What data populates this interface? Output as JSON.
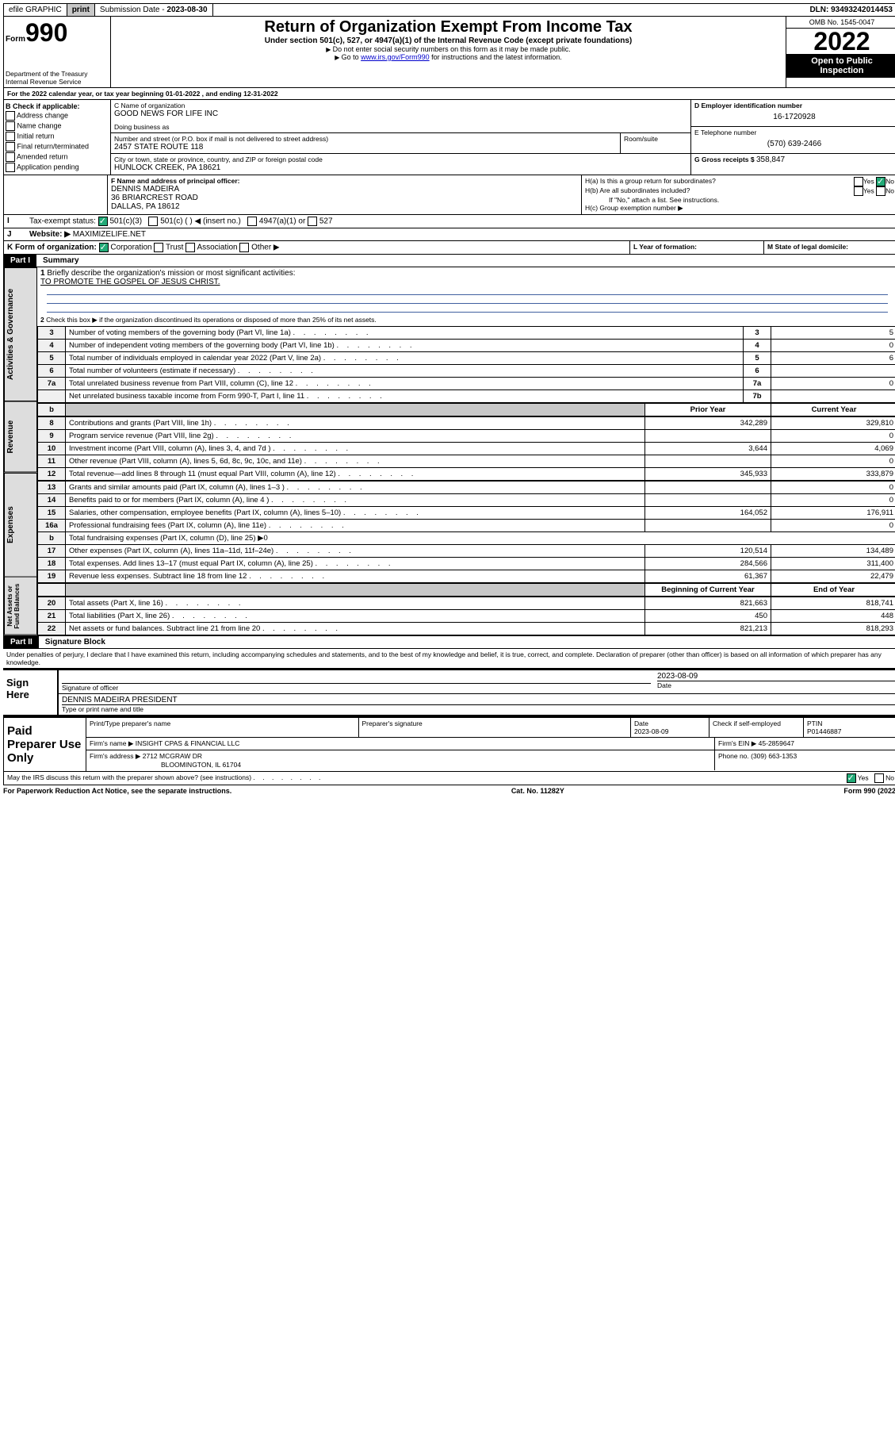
{
  "topbar": {
    "efile": "efile GRAPHIC",
    "print": "print",
    "sub_label": "Submission Date - ",
    "sub_date": "2023-08-30",
    "dln_label": "DLN: ",
    "dln": "93493242014453"
  },
  "header": {
    "form_prefix": "Form",
    "form_num": "990",
    "dept": "Department of the Treasury",
    "irs": "Internal Revenue Service",
    "title": "Return of Organization Exempt From Income Tax",
    "sub1": "Under section 501(c), 527, or 4947(a)(1) of the Internal Revenue Code (except private foundations)",
    "sub2": "Do not enter social security numbers on this form as it may be made public.",
    "sub3_pre": "Go to ",
    "sub3_link": "www.irs.gov/Form990",
    "sub3_post": " for instructions and the latest information.",
    "omb": "OMB No. 1545-0047",
    "year": "2022",
    "open": "Open to Public Inspection"
  },
  "line_a": "For the 2022 calendar year, or tax year beginning 01-01-2022    , and ending 12-31-2022",
  "block_b": {
    "label": "B Check if applicable:",
    "opts": [
      "Address change",
      "Name change",
      "Initial return",
      "Final return/terminated",
      "Amended return",
      "Application pending"
    ]
  },
  "block_c": {
    "name_label": "C Name of organization",
    "name": "GOOD NEWS FOR LIFE INC",
    "dba_label": "Doing business as",
    "addr_label": "Number and street (or P.O. box if mail is not delivered to street address)",
    "room_label": "Room/suite",
    "addr": "2457 STATE ROUTE 118",
    "city_label": "City or town, state or province, country, and ZIP or foreign postal code",
    "city": "HUNLOCK CREEK, PA   18621"
  },
  "block_d": {
    "label": "D Employer identification number",
    "val": "16-1720928"
  },
  "block_e": {
    "label": "E Telephone number",
    "val": "(570) 639-2466"
  },
  "block_g": {
    "label": "G Gross receipts $ ",
    "val": "358,847"
  },
  "block_f": {
    "label": "F  Name and address of principal officer:",
    "name": "DENNIS MADEIRA",
    "addr1": "36 BRIARCREST ROAD",
    "addr2": "DALLAS, PA   18612"
  },
  "block_h": {
    "a": "H(a)  Is this a group return for subordinates?",
    "b": "H(b)  Are all subordinates included?",
    "b_note": "If \"No,\" attach a list. See instructions.",
    "c": "H(c)  Group exemption number ▶",
    "yes": "Yes",
    "no": "No"
  },
  "line_i": {
    "label": "Tax-exempt status:",
    "o1": "501(c)(3)",
    "o2": "501(c) (    ) ◀ (insert no.)",
    "o3": "4947(a)(1) or",
    "o4": "527"
  },
  "line_j": {
    "label": "Website: ▶",
    "val": "MAXIMIZELIFE.NET"
  },
  "line_k": {
    "label": "K Form of organization:",
    "o1": "Corporation",
    "o2": "Trust",
    "o3": "Association",
    "o4": "Other ▶"
  },
  "line_l": "L Year of formation:",
  "line_m": "M State of legal domicile:",
  "part1": {
    "hdr": "Part I",
    "title": "Summary",
    "l1": "Briefly describe the organization's mission or most significant activities:",
    "l1v": "TO PROMOTE THE GOSPEL OF JESUS CHRIST.",
    "l2": "Check this box ▶     if the organization discontinued its operations or disposed of more than 25% of its net assets.",
    "col_prior": "Prior Year",
    "col_curr": "Current Year",
    "col_beg": "Beginning of Current Year",
    "col_end": "End of Year",
    "rows_top": [
      {
        "n": "3",
        "d": "Number of voting members of the governing body (Part VI, line 1a)",
        "r": "3",
        "v": "5"
      },
      {
        "n": "4",
        "d": "Number of independent voting members of the governing body (Part VI, line 1b)",
        "r": "4",
        "v": "0"
      },
      {
        "n": "5",
        "d": "Total number of individuals employed in calendar year 2022 (Part V, line 2a)",
        "r": "5",
        "v": "6"
      },
      {
        "n": "6",
        "d": "Total number of volunteers (estimate if necessary)",
        "r": "6",
        "v": ""
      },
      {
        "n": "7a",
        "d": "Total unrelated business revenue from Part VIII, column (C), line 12",
        "r": "7a",
        "v": "0"
      },
      {
        "n": "",
        "d": "Net unrelated business taxable income from Form 990-T, Part I, line 11",
        "r": "7b",
        "v": ""
      }
    ],
    "rows_rev": [
      {
        "n": "8",
        "d": "Contributions and grants (Part VIII, line 1h)",
        "p": "342,289",
        "c": "329,810"
      },
      {
        "n": "9",
        "d": "Program service revenue (Part VIII, line 2g)",
        "p": "",
        "c": "0"
      },
      {
        "n": "10",
        "d": "Investment income (Part VIII, column (A), lines 3, 4, and 7d )",
        "p": "3,644",
        "c": "4,069"
      },
      {
        "n": "11",
        "d": "Other revenue (Part VIII, column (A), lines 5, 6d, 8c, 9c, 10c, and 11e)",
        "p": "",
        "c": "0"
      },
      {
        "n": "12",
        "d": "Total revenue—add lines 8 through 11 (must equal Part VIII, column (A), line 12)",
        "p": "345,933",
        "c": "333,879"
      }
    ],
    "rows_exp": [
      {
        "n": "13",
        "d": "Grants and similar amounts paid (Part IX, column (A), lines 1–3 )",
        "p": "",
        "c": "0"
      },
      {
        "n": "14",
        "d": "Benefits paid to or for members (Part IX, column (A), line 4 )",
        "p": "",
        "c": "0"
      },
      {
        "n": "15",
        "d": "Salaries, other compensation, employee benefits (Part IX, column (A), lines 5–10)",
        "p": "164,052",
        "c": "176,911"
      },
      {
        "n": "16a",
        "d": "Professional fundraising fees (Part IX, column (A), line 11e)",
        "p": "",
        "c": "0"
      },
      {
        "n": "b",
        "d": "Total fundraising expenses (Part IX, column (D), line 25) ▶0",
        "p": "—",
        "c": "—"
      },
      {
        "n": "17",
        "d": "Other expenses (Part IX, column (A), lines 11a–11d, 11f–24e)",
        "p": "120,514",
        "c": "134,489"
      },
      {
        "n": "18",
        "d": "Total expenses. Add lines 13–17 (must equal Part IX, column (A), line 25)",
        "p": "284,566",
        "c": "311,400"
      },
      {
        "n": "19",
        "d": "Revenue less expenses. Subtract line 18 from line 12",
        "p": "61,367",
        "c": "22,479"
      }
    ],
    "rows_net": [
      {
        "n": "20",
        "d": "Total assets (Part X, line 16)",
        "p": "821,663",
        "c": "818,741"
      },
      {
        "n": "21",
        "d": "Total liabilities (Part X, line 26)",
        "p": "450",
        "c": "448"
      },
      {
        "n": "22",
        "d": "Net assets or fund balances. Subtract line 21 from line 20",
        "p": "821,213",
        "c": "818,293"
      }
    ],
    "tabs": [
      "Activities & Governance",
      "Revenue",
      "Expenses",
      "Net Assets or Fund Balances"
    ]
  },
  "part2": {
    "hdr": "Part II",
    "title": "Signature Block",
    "decl": "Under penalties of perjury, I declare that I have examined this return, including accompanying schedules and statements, and to the best of my knowledge and belief, it is true, correct, and complete. Declaration of preparer (other than officer) is based on all information of which preparer has any knowledge.",
    "sign_here": "Sign Here",
    "sig_off": "Signature of officer",
    "date_l": "Date",
    "sig_date": "2023-08-09",
    "sig_name": "DENNIS MADEIRA  PRESIDENT",
    "sig_name_l": "Type or print name and title",
    "paid": "Paid Preparer Use Only",
    "pp_name_l": "Print/Type preparer's name",
    "pp_sig_l": "Preparer's signature",
    "pp_date_l": "Date",
    "pp_date": "2023-08-09",
    "pp_check_l": "Check        if self-employed",
    "pp_ptin_l": "PTIN",
    "pp_ptin": "P01446887",
    "firm_name_l": "Firm's name     ▶",
    "firm_name": "INSIGHT CPAS & FINANCIAL LLC",
    "firm_ein_l": "Firm's EIN ▶ ",
    "firm_ein": "45-2859647",
    "firm_addr_l": "Firm's address ▶",
    "firm_addr1": "2712 MCGRAW DR",
    "firm_addr2": "BLOOMINGTON, IL 61704",
    "firm_phone_l": "Phone no. ",
    "firm_phone": "(309) 663-1353",
    "may": "May the IRS discuss this return with the preparer shown above? (see instructions)",
    "yes": "Yes",
    "no": "No"
  },
  "footer": {
    "l": "For Paperwork Reduction Act Notice, see the separate instructions.",
    "m": "Cat. No. 11282Y",
    "r": "Form 990 (2022)"
  }
}
